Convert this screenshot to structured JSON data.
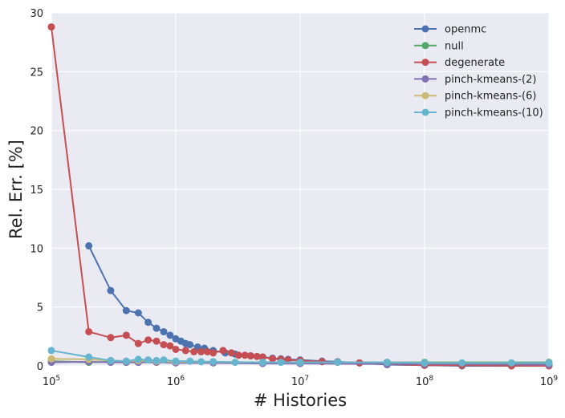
{
  "chart_data": {
    "type": "line",
    "xscale": "log",
    "xlabel": "# Histories",
    "ylabel": "Rel. Err. [%]",
    "xlim": [
      100000,
      1000000000
    ],
    "ylim": [
      0,
      30
    ],
    "xticks": [
      {
        "value": 100000,
        "base": "10",
        "exp": "5"
      },
      {
        "value": 1000000,
        "base": "10",
        "exp": "6"
      },
      {
        "value": 10000000,
        "base": "10",
        "exp": "7"
      },
      {
        "value": 100000000,
        "base": "10",
        "exp": "8"
      },
      {
        "value": 1000000000,
        "base": "10",
        "exp": "9"
      }
    ],
    "yticks": [
      "0",
      "5",
      "10",
      "15",
      "20",
      "25",
      "30"
    ],
    "grid": true,
    "legend_position": "top-right",
    "series": [
      {
        "name": "openmc",
        "color": "#4c72b0",
        "x": [
          200000,
          300000,
          400000,
          500000,
          600000,
          700000,
          800000,
          900000,
          1000000,
          1100000,
          1200000,
          1300000,
          1500000,
          1700000,
          2000000,
          2500000,
          3000000,
          4000000,
          5000000,
          6000000,
          7000000,
          8000000,
          10000000,
          15000000,
          20000000,
          30000000,
          50000000,
          100000000,
          200000000,
          500000000,
          1000000000
        ],
        "y": [
          10.2,
          6.4,
          4.7,
          4.5,
          3.7,
          3.2,
          2.9,
          2.6,
          2.3,
          2.1,
          1.9,
          1.8,
          1.6,
          1.5,
          1.3,
          1.1,
          1.0,
          0.85,
          0.75,
          0.65,
          0.6,
          0.55,
          0.5,
          0.4,
          0.35,
          0.25,
          0.1,
          0.05,
          0.0,
          0.0,
          0.0
        ]
      },
      {
        "name": "null",
        "color": "#55a868",
        "x": [
          100000,
          200000,
          300000,
          400000,
          500000,
          700000,
          1000000,
          2000000,
          5000000,
          10000000,
          50000000,
          100000000,
          1000000000
        ],
        "y": [
          0.4,
          0.3,
          0.35,
          0.3,
          0.3,
          0.35,
          0.3,
          0.3,
          0.3,
          0.3,
          0.3,
          0.3,
          0.3
        ]
      },
      {
        "name": "degenerate",
        "color": "#c44e52",
        "x": [
          100000,
          200000,
          300000,
          400000,
          500000,
          600000,
          700000,
          800000,
          900000,
          1000000,
          1200000,
          1400000,
          1600000,
          1800000,
          2000000,
          2400000,
          2800000,
          3200000,
          3600000,
          4000000,
          4500000,
          5000000,
          6000000,
          7000000,
          8000000,
          10000000,
          15000000,
          20000000,
          30000000,
          50000000,
          100000000,
          200000000,
          500000000,
          1000000000
        ],
        "y": [
          28.8,
          2.9,
          2.4,
          2.6,
          1.9,
          2.2,
          2.1,
          1.8,
          1.7,
          1.4,
          1.3,
          1.2,
          1.2,
          1.2,
          1.1,
          1.3,
          1.1,
          0.9,
          0.9,
          0.85,
          0.8,
          0.75,
          0.6,
          0.55,
          0.5,
          0.45,
          0.35,
          0.3,
          0.25,
          0.15,
          0.05,
          0.05,
          0.0,
          0.0
        ]
      },
      {
        "name": "pinch-kmeans-(2)",
        "color": "#8172b2",
        "x": [
          100000,
          200000,
          300000,
          400000,
          500000,
          700000,
          1000000,
          2000000,
          5000000,
          10000000,
          50000000,
          100000000,
          1000000000
        ],
        "y": [
          0.3,
          0.35,
          0.3,
          0.3,
          0.3,
          0.3,
          0.25,
          0.25,
          0.2,
          0.2,
          0.15,
          0.15,
          0.1
        ]
      },
      {
        "name": "pinch-kmeans-(6)",
        "color": "#ccb974",
        "x": [
          100000,
          200000,
          300000,
          400000,
          500000,
          700000,
          1000000,
          2000000,
          5000000,
          10000000,
          50000000,
          100000000,
          1000000000
        ],
        "y": [
          0.6,
          0.55,
          0.45,
          0.4,
          0.45,
          0.4,
          0.35,
          0.35,
          0.3,
          0.3,
          0.3,
          0.25,
          0.25
        ]
      },
      {
        "name": "pinch-kmeans-(10)",
        "color": "#64b5cd",
        "x": [
          100000,
          200000,
          300000,
          400000,
          500000,
          600000,
          700000,
          800000,
          1000000,
          1300000,
          1600000,
          2000000,
          3000000,
          5000000,
          7000000,
          10000000,
          20000000,
          50000000,
          100000000,
          200000000,
          500000000,
          1000000000
        ],
        "y": [
          1.3,
          0.75,
          0.45,
          0.4,
          0.55,
          0.5,
          0.45,
          0.5,
          0.4,
          0.4,
          0.35,
          0.35,
          0.3,
          0.3,
          0.3,
          0.3,
          0.3,
          0.3,
          0.25,
          0.25,
          0.25,
          0.25
        ]
      }
    ]
  }
}
